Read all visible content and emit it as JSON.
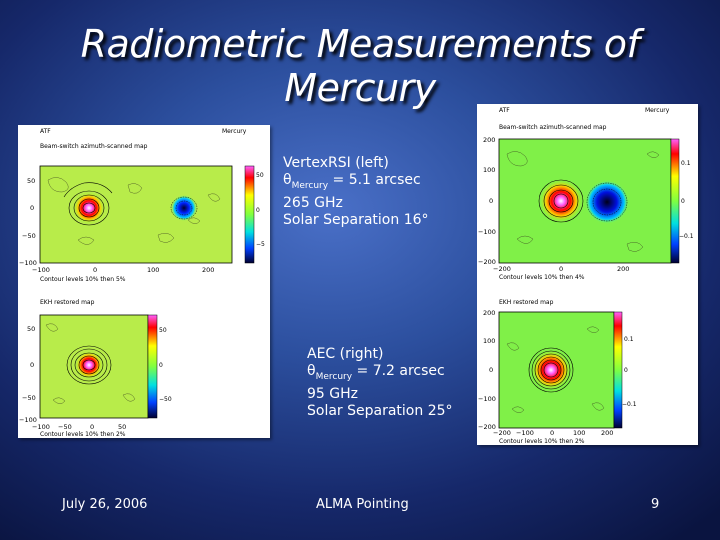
{
  "slide": {
    "title_line1": "Radiometric Measurements of",
    "title_line2": "Mercury"
  },
  "left_panel": {
    "header_left": "ATF",
    "header_right": "Mercury",
    "map1_title": "Beam-switch azimuth-scanned map",
    "map1_caption": "Contour levels 10% then 5%",
    "map1_y_ticks": [
      "50",
      "0",
      "−50",
      "−100"
    ],
    "map1_x_ticks": [
      "−100",
      "0",
      "100",
      "200"
    ],
    "map1_colorbar_ticks": [
      "50",
      "0",
      "−5"
    ],
    "map2_title": "EKH restored  map",
    "map2_caption": "Contour levels 10% then 2%",
    "map2_y_ticks": [
      "50",
      "0",
      "−50",
      "−100"
    ],
    "map2_x_ticks": [
      "−100",
      "−50",
      "0",
      "50"
    ],
    "map2_colorbar_ticks": [
      "50",
      "0",
      "−50"
    ]
  },
  "right_panel": {
    "header_left": "ATF",
    "header_right": "Mercury",
    "map1_title": "Beam-switch azimuth-scanned map",
    "map1_caption": "Contour levels 10% then 4%",
    "map1_y_ticks": [
      "200",
      "100",
      "0",
      "−100",
      "−200"
    ],
    "map1_x_ticks": [
      "−200",
      "0",
      "200"
    ],
    "map1_colorbar_ticks": [
      "0.1",
      "0",
      "−0.1"
    ],
    "map2_title": "EKH restored  map",
    "map2_caption": "Contour levels 10% then 2%",
    "map2_y_ticks": [
      "200",
      "100",
      "0",
      "−100",
      "−200"
    ],
    "map2_x_ticks": [
      "−200",
      "−100",
      "0",
      "100",
      "200"
    ],
    "map2_colorbar_ticks": [
      "0.1",
      "0",
      "−0.1"
    ]
  },
  "vertex_info": {
    "line1": "VertexRSI (left)",
    "theta": "θ",
    "sub": "Mercury",
    "value": " = 5.1 arcsec",
    "line3": "265 GHz",
    "line4": "Solar Separation 16°"
  },
  "aec_info": {
    "line1": "AEC (right)",
    "theta": "θ",
    "sub": "Mercury",
    "value": " = 7.2 arcsec",
    "line3": "95 GHz",
    "line4": "Solar Separation 25°"
  },
  "footer": {
    "date": "July 26, 2006",
    "center": "ALMA Pointing",
    "page": "9"
  }
}
